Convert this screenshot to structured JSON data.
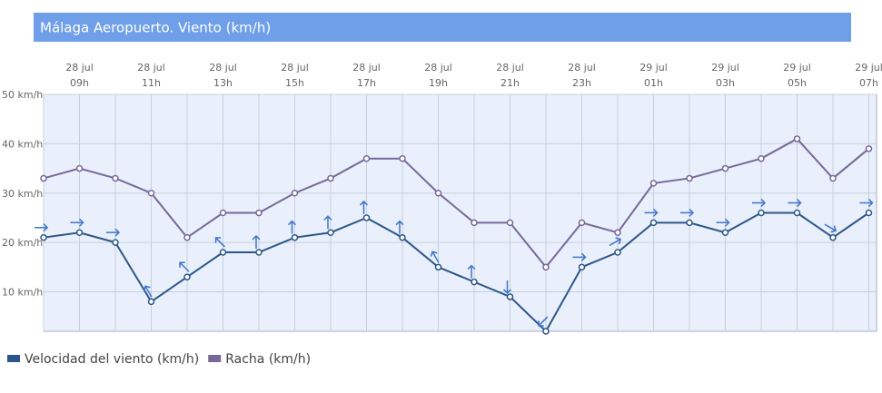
{
  "chart_data": {
    "type": "line",
    "title": "Málaga Aeropuerto. Viento (km/h)",
    "categories": [
      null,
      [
        "28 jul",
        "09h"
      ],
      null,
      [
        "28 jul",
        "11h"
      ],
      null,
      [
        "28 jul",
        "13h"
      ],
      null,
      [
        "28 jul",
        "15h"
      ],
      null,
      [
        "28 jul",
        "17h"
      ],
      null,
      [
        "28 jul",
        "19h"
      ],
      null,
      [
        "28 jul",
        "21h"
      ],
      null,
      [
        "28 jul",
        "23h"
      ],
      null,
      [
        "29 jul",
        "01h"
      ],
      null,
      [
        "29 jul",
        "03h"
      ],
      null,
      [
        "29 jul",
        "05h"
      ],
      null,
      [
        "29 jul",
        "07h"
      ]
    ],
    "series": [
      {
        "name": "Velocidad del viento (km/h)",
        "color": "#2c5689",
        "values": [
          21,
          22,
          20,
          8,
          13,
          18,
          18,
          21,
          22,
          25,
          21,
          15,
          12,
          9,
          2,
          15,
          18,
          24,
          24,
          22,
          26,
          26,
          21,
          26
        ],
        "directions": [
          90,
          90,
          90,
          330,
          315,
          315,
          0,
          0,
          0,
          0,
          0,
          330,
          0,
          180,
          225,
          90,
          60,
          90,
          90,
          90,
          90,
          90,
          120,
          90
        ]
      },
      {
        "name": "Racha (km/h)",
        "color": "#77689a",
        "values": [
          33,
          35,
          33,
          30,
          21,
          26,
          26,
          30,
          33,
          37,
          37,
          30,
          24,
          24,
          15,
          24,
          22,
          32,
          33,
          35,
          37,
          41,
          33,
          39
        ]
      }
    ],
    "ylim": [
      2,
      50
    ],
    "yticks": [
      {
        "value": 10,
        "label": "10 km/h"
      },
      {
        "value": 20,
        "label": "20 km/h"
      },
      {
        "value": 30,
        "label": "30 km/h"
      },
      {
        "value": 40,
        "label": "40 km/h"
      },
      {
        "value": 50,
        "label": "50 km/h"
      }
    ],
    "grid": true
  }
}
